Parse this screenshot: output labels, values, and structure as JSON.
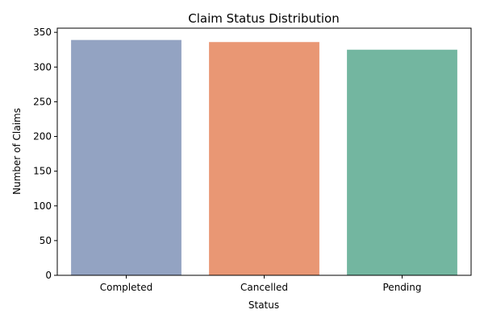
{
  "chart_data": {
    "type": "bar",
    "title": "Claim Status Distribution",
    "xlabel": "Status",
    "ylabel": "Number of Claims",
    "categories": [
      "Completed",
      "Cancelled",
      "Pending"
    ],
    "values": [
      339,
      336,
      325
    ],
    "ylim": [
      0,
      356
    ],
    "yticks": [
      0,
      50,
      100,
      150,
      200,
      250,
      300,
      350
    ],
    "colors": [
      "#93a3c2",
      "#e99774",
      "#73b6a0"
    ],
    "grid": false,
    "legend": "none"
  }
}
